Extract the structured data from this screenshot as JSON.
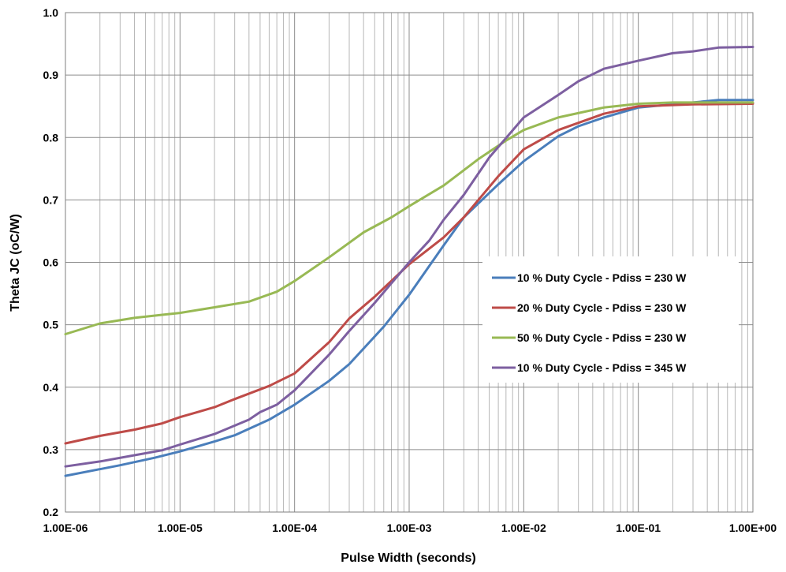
{
  "chart_data": {
    "type": "line",
    "title": "",
    "xlabel": "Pulse Width (seconds)",
    "ylabel": "Theta JC (oC/W)",
    "x_scale": "log",
    "xlim": [
      1e-06,
      1
    ],
    "ylim": [
      0.2,
      1.0
    ],
    "grid": true,
    "legend_position": "right",
    "x_tick_labels": [
      "1.00E-06",
      "1.00E-05",
      "1.00E-04",
      "1.00E-03",
      "1.00E-02",
      "1.00E-01",
      "1.00E+00"
    ],
    "y_tick_labels": [
      "0.2",
      "0.3",
      "0.4",
      "0.5",
      "0.6",
      "0.7",
      "0.8",
      "0.9",
      "1.0"
    ],
    "series": [
      {
        "name": "10 % Duty Cycle - Pdiss = 230 W",
        "color": "#4a7ebb",
        "points": [
          [
            1e-06,
            0.258
          ],
          [
            3e-06,
            0.275
          ],
          [
            6e-06,
            0.287
          ],
          [
            1e-05,
            0.297
          ],
          [
            2e-05,
            0.313
          ],
          [
            3e-05,
            0.323
          ],
          [
            6e-05,
            0.348
          ],
          [
            0.0001,
            0.372
          ],
          [
            0.0002,
            0.41
          ],
          [
            0.0003,
            0.437
          ],
          [
            0.0006,
            0.497
          ],
          [
            0.001,
            0.548
          ],
          [
            0.002,
            0.627
          ],
          [
            0.003,
            0.672
          ],
          [
            0.006,
            0.725
          ],
          [
            0.01,
            0.762
          ],
          [
            0.02,
            0.802
          ],
          [
            0.03,
            0.818
          ],
          [
            0.05,
            0.832
          ],
          [
            0.1,
            0.848
          ],
          [
            0.2,
            0.853
          ],
          [
            0.5,
            0.86
          ],
          [
            1,
            0.86
          ]
        ]
      },
      {
        "name": "20 % Duty Cycle - Pdiss = 230 W",
        "color": "#be4b48",
        "points": [
          [
            1e-06,
            0.31
          ],
          [
            2e-06,
            0.322
          ],
          [
            4e-06,
            0.332
          ],
          [
            7e-06,
            0.342
          ],
          [
            1e-05,
            0.352
          ],
          [
            2e-05,
            0.368
          ],
          [
            3e-05,
            0.381
          ],
          [
            6e-05,
            0.402
          ],
          [
            0.0001,
            0.422
          ],
          [
            0.0002,
            0.472
          ],
          [
            0.0003,
            0.51
          ],
          [
            0.0005,
            0.545
          ],
          [
            0.001,
            0.597
          ],
          [
            0.002,
            0.64
          ],
          [
            0.003,
            0.672
          ],
          [
            0.006,
            0.738
          ],
          [
            0.01,
            0.781
          ],
          [
            0.02,
            0.812
          ],
          [
            0.05,
            0.838
          ],
          [
            0.1,
            0.85
          ],
          [
            0.3,
            0.853
          ],
          [
            1,
            0.854
          ]
        ]
      },
      {
        "name": "50 % Duty Cycle - Pdiss = 230 W",
        "color": "#98b954",
        "points": [
          [
            1e-06,
            0.485
          ],
          [
            2e-06,
            0.502
          ],
          [
            4e-06,
            0.511
          ],
          [
            7e-06,
            0.516
          ],
          [
            1e-05,
            0.519
          ],
          [
            2e-05,
            0.528
          ],
          [
            4e-05,
            0.537
          ],
          [
            7e-05,
            0.553
          ],
          [
            0.0001,
            0.57
          ],
          [
            0.0002,
            0.608
          ],
          [
            0.0004,
            0.648
          ],
          [
            0.0007,
            0.672
          ],
          [
            0.001,
            0.69
          ],
          [
            0.002,
            0.723
          ],
          [
            0.004,
            0.765
          ],
          [
            0.007,
            0.795
          ],
          [
            0.01,
            0.812
          ],
          [
            0.02,
            0.832
          ],
          [
            0.05,
            0.848
          ],
          [
            0.1,
            0.854
          ],
          [
            0.2,
            0.856
          ],
          [
            1,
            0.856
          ]
        ]
      },
      {
        "name": "10 % Duty Cycle - Pdiss = 345 W",
        "color": "#7d5fa0",
        "points": [
          [
            1e-06,
            0.273
          ],
          [
            2e-06,
            0.281
          ],
          [
            4e-06,
            0.291
          ],
          [
            7e-06,
            0.299
          ],
          [
            1e-05,
            0.308
          ],
          [
            2e-05,
            0.325
          ],
          [
            4e-05,
            0.348
          ],
          [
            5e-05,
            0.36
          ],
          [
            7e-05,
            0.372
          ],
          [
            0.0001,
            0.395
          ],
          [
            0.0002,
            0.452
          ],
          [
            0.0003,
            0.49
          ],
          [
            0.0005,
            0.535
          ],
          [
            0.001,
            0.6
          ],
          [
            0.0015,
            0.635
          ],
          [
            0.002,
            0.668
          ],
          [
            0.003,
            0.708
          ],
          [
            0.005,
            0.768
          ],
          [
            0.01,
            0.832
          ],
          [
            0.02,
            0.868
          ],
          [
            0.03,
            0.89
          ],
          [
            0.05,
            0.91
          ],
          [
            0.1,
            0.923
          ],
          [
            0.2,
            0.935
          ],
          [
            0.3,
            0.938
          ],
          [
            0.5,
            0.944
          ],
          [
            1,
            0.945
          ]
        ]
      }
    ]
  }
}
